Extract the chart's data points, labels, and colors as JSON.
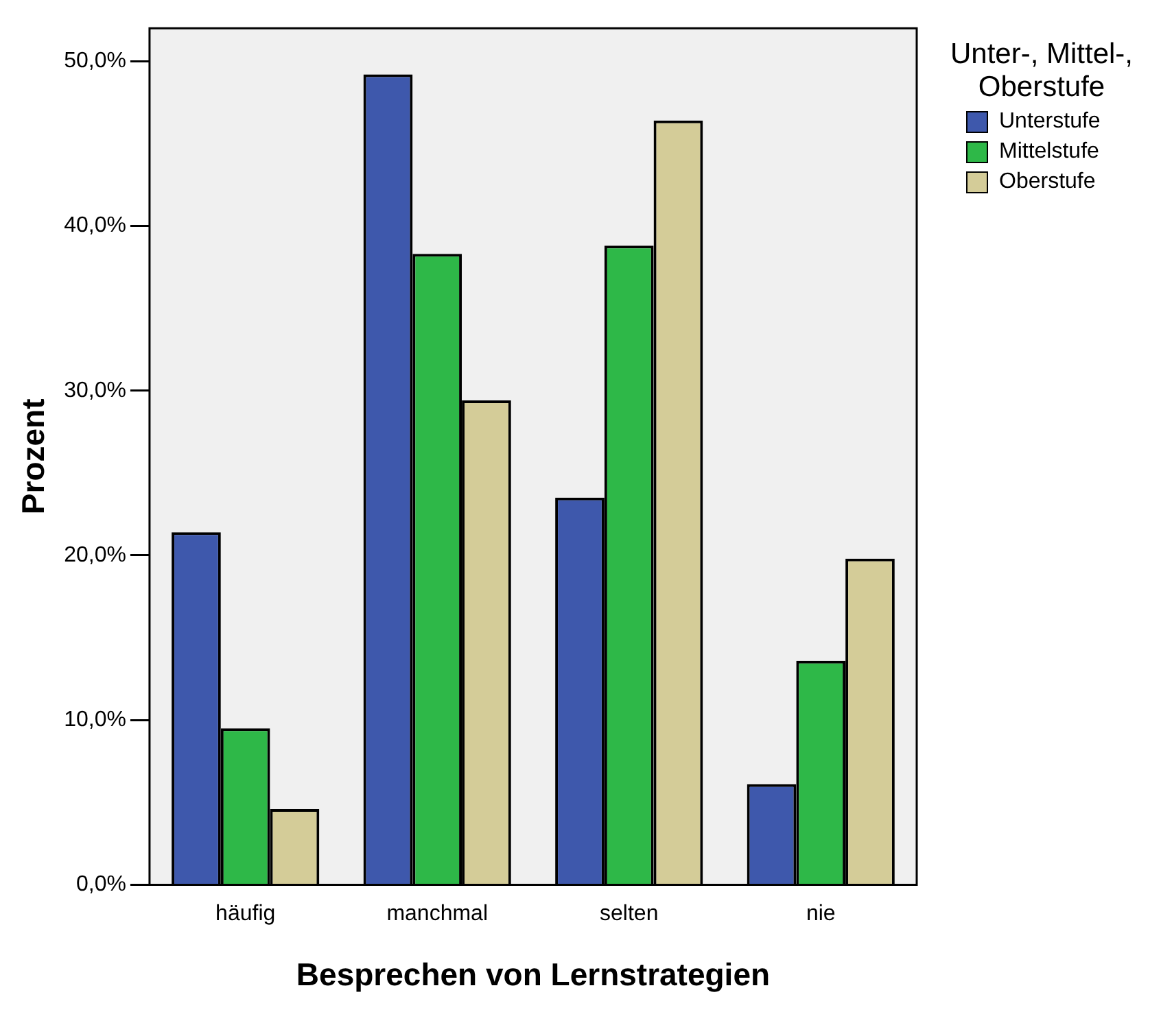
{
  "chart_data": {
    "type": "bar",
    "xlabel": "Besprechen von Lernstrategien",
    "ylabel": "Prozent",
    "legend_title": "Unter-, Mittel-, Oberstufe",
    "legend": "top right",
    "categories": [
      "häufig",
      "manchmal",
      "selten",
      "nie"
    ],
    "series": [
      {
        "name": "Unterstufe",
        "color": "#3e58ac",
        "values": [
          21.4,
          49.2,
          23.5,
          6.1
        ]
      },
      {
        "name": "Mittelstufe",
        "color": "#2eb848",
        "values": [
          9.5,
          38.3,
          38.8,
          13.6
        ]
      },
      {
        "name": "Oberstufe",
        "color": "#d4cc98",
        "values": [
          4.6,
          29.4,
          46.4,
          19.8
        ]
      }
    ],
    "ylim": [
      0,
      52
    ],
    "yticks": [
      {
        "value": 0,
        "label": "0,0%"
      },
      {
        "value": 10,
        "label": "10,0%"
      },
      {
        "value": 20,
        "label": "20,0%"
      },
      {
        "value": 30,
        "label": "30,0%"
      },
      {
        "value": 40,
        "label": "40,0%"
      },
      {
        "value": 50,
        "label": "50,0%"
      }
    ],
    "grid": false
  }
}
